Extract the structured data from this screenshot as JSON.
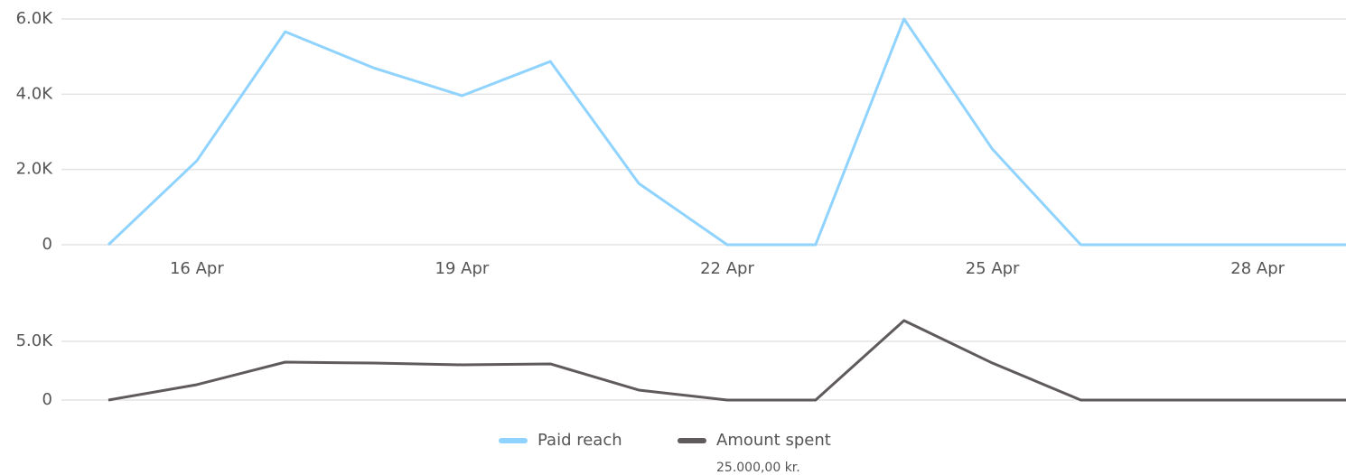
{
  "chart_data": [
    {
      "type": "line",
      "categories": [
        null,
        "16 Apr",
        null,
        null,
        "19 Apr",
        null,
        null,
        "22 Apr",
        null,
        null,
        "25 Apr",
        null,
        null,
        "28 Apr",
        null
      ],
      "series": [
        {
          "name": "Paid reach",
          "color": "#8fd3fe",
          "values": [
            0,
            2230,
            5660,
            4700,
            3960,
            4870,
            1630,
            0,
            0,
            6000,
            2540,
            0,
            0,
            0,
            0
          ]
        }
      ],
      "ylim": [
        0,
        6000
      ],
      "yticks": [
        0,
        {
          "value": 2000,
          "label": "2.0K"
        },
        {
          "value": 4000,
          "label": "4.0K"
        },
        {
          "value": 6000,
          "label": "6.0K"
        }
      ],
      "grid": true
    },
    {
      "type": "line",
      "series": [
        {
          "name": "Amount spent",
          "color": "#5f5a5c",
          "values": [
            0,
            1310,
            3230,
            3150,
            3000,
            3080,
            850,
            0,
            0,
            6770,
            3150,
            0,
            0,
            0,
            0
          ]
        }
      ],
      "ylim": [
        0,
        7000
      ],
      "yticks": [
        0,
        {
          "value": 5000,
          "label": "5.0K"
        }
      ],
      "grid": true,
      "annotation": "25.000,00 kr."
    }
  ]
}
